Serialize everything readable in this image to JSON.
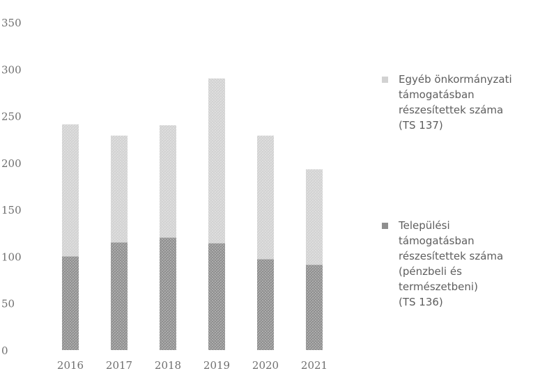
{
  "chart_data": {
    "type": "bar",
    "stacked": true,
    "categories": [
      "2016",
      "2017",
      "2018",
      "2019",
      "2020",
      "2021"
    ],
    "series": [
      {
        "name": "Települési támogatásban részesítettek száma (pénzbeli és természetbeni) (TS 136)",
        "values": [
          100,
          115,
          120,
          114,
          97,
          91
        ],
        "color": "#8f8f8f"
      },
      {
        "name": "Egyéb önkormányzati támogatásban részesítettek száma (TS 137)",
        "values": [
          141,
          114,
          120,
          176,
          132,
          102
        ],
        "color": "#d2d2d2"
      }
    ],
    "ylim": [
      0,
      350
    ],
    "yticks": [
      "0",
      "50",
      "100",
      "150",
      "200",
      "250",
      "300",
      "350"
    ],
    "grid": false,
    "legend_position": "right"
  },
  "legend": {
    "items": [
      {
        "text": "Egyéb önkormányzati\ntámogatásban\nrészesítettek száma\n(TS 137)",
        "color": "#d2d2d2"
      },
      {
        "text": "Települési\ntámogatásban\nrészesítettek száma\n(pénzbeli és\ntermészetbeni)\n(TS 136)",
        "color": "#8f8f8f"
      }
    ]
  }
}
